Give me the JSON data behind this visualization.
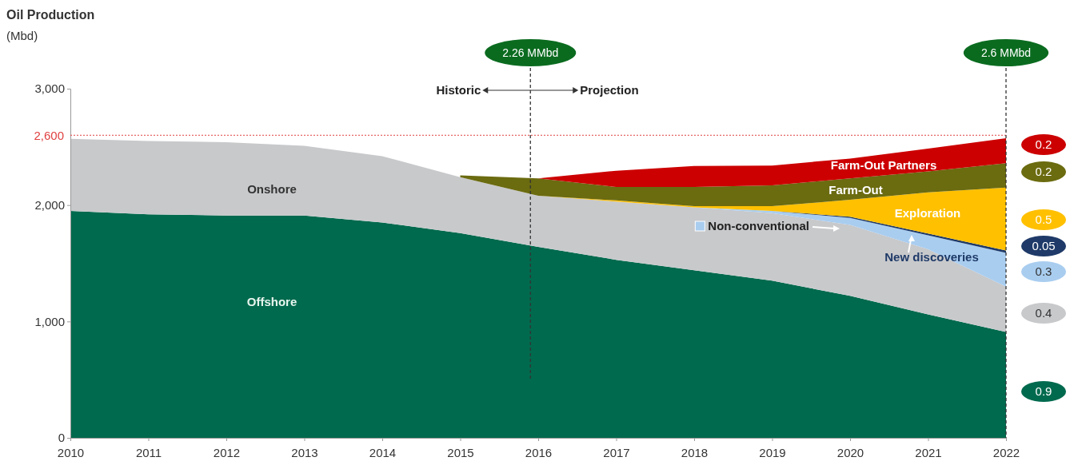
{
  "chart_data": {
    "type": "area",
    "stacked": true,
    "title": "Oil Production",
    "ylabel": "(Mbd)",
    "x": [
      2010,
      2011,
      2012,
      2013,
      2014,
      2015,
      2016,
      2017,
      2018,
      2019,
      2020,
      2021,
      2022
    ],
    "xlim": [
      2010,
      2022
    ],
    "xticks": [
      2010,
      2011,
      2012,
      2013,
      2014,
      2015,
      2016,
      2017,
      2018,
      2019,
      2020,
      2021,
      2022
    ],
    "ylim": [
      0,
      3000
    ],
    "yticks": [
      {
        "value": 0,
        "label": "0"
      },
      {
        "value": 1000,
        "label": "1,000"
      },
      {
        "value": 2000,
        "label": "2,000"
      },
      {
        "value": 3000,
        "label": "3,000"
      }
    ],
    "grid": false,
    "series": [
      {
        "name": "Offshore",
        "color": "#006a4e",
        "values": [
          1950,
          1920,
          1910,
          1910,
          1850,
          1760,
          1640,
          1530,
          1440,
          1350,
          1220,
          1060,
          910
        ]
      },
      {
        "name": "Onshore",
        "color": "#c8c9cb",
        "values": [
          620,
          630,
          630,
          600,
          570,
          480,
          440,
          500,
          540,
          580,
          610,
          560,
          390
        ]
      },
      {
        "name": "Non-conventional",
        "color": "#a9cdef",
        "values": [
          null,
          null,
          null,
          null,
          null,
          null,
          null,
          null,
          0,
          20,
          60,
          120,
          290
        ]
      },
      {
        "name": "New discoveries",
        "color": "#1f3a68",
        "values": [
          null,
          null,
          null,
          null,
          null,
          null,
          null,
          null,
          null,
          0,
          10,
          15,
          20
        ]
      },
      {
        "name": "Exploration",
        "color": "#ffc000",
        "values": [
          null,
          null,
          null,
          null,
          null,
          null,
          0,
          10,
          10,
          40,
          145,
          355,
          540
        ]
      },
      {
        "name": "Farm-Out",
        "color": "#6b6b10",
        "values": [
          null,
          null,
          null,
          null,
          null,
          15,
          150,
          115,
          165,
          180,
          185,
          180,
          210
        ]
      },
      {
        "name": "Farm-Out Partners",
        "color": "#cc0000",
        "values": [
          null,
          null,
          null,
          null,
          null,
          0,
          0,
          140,
          180,
          170,
          170,
          195,
          215
        ]
      }
    ],
    "ref_lines": [
      {
        "axis": "y",
        "value": 2600,
        "label": "2,600",
        "color": "#e04040",
        "line_style": "dotted"
      },
      {
        "axis": "x",
        "value": 2015.9,
        "label": "2.26 MMbd",
        "color": "#333333",
        "line_style": "dashed"
      },
      {
        "axis": "x",
        "value": 2022,
        "label": "2.6 MMbd",
        "color": "#333333",
        "line_style": "dashed"
      }
    ],
    "annotations": [
      "Historic",
      "Projection",
      "0.2",
      "0.2",
      "0.5",
      "0.05",
      "0.3",
      "0.4",
      "0.9"
    ]
  }
}
